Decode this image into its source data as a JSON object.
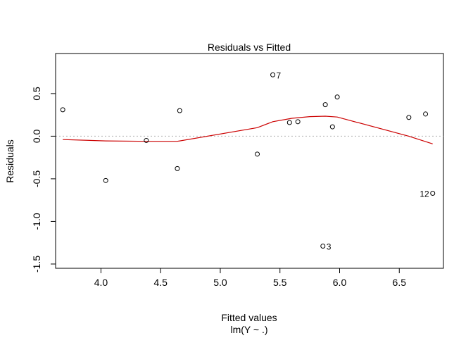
{
  "chart_data": {
    "type": "scatter",
    "title": "Residuals vs Fitted",
    "xlabel": "Fitted values",
    "xsublabel": "lm(Y ~ .)",
    "ylabel": "Residuals",
    "xlim": [
      3.62,
      6.87
    ],
    "ylim": [
      -1.55,
      0.97
    ],
    "x_ticks": [
      4.0,
      4.5,
      5.0,
      5.5,
      6.0,
      6.5
    ],
    "x_tick_labels": [
      "4.0",
      "4.5",
      "5.0",
      "5.5",
      "6.0",
      "6.5"
    ],
    "y_ticks": [
      -1.5,
      -1.0,
      -0.5,
      0.0,
      0.5
    ],
    "y_tick_labels": [
      "-1.5",
      "-1.0",
      "-0.5",
      "0.0",
      "0.5"
    ],
    "reference_line_y": 0,
    "points": [
      {
        "x": 3.68,
        "y": 0.31
      },
      {
        "x": 4.04,
        "y": -0.52
      },
      {
        "x": 4.38,
        "y": -0.05
      },
      {
        "x": 4.64,
        "y": -0.38
      },
      {
        "x": 4.66,
        "y": 0.3
      },
      {
        "x": 5.31,
        "y": -0.21
      },
      {
        "x": 5.44,
        "y": 0.72,
        "label": "7"
      },
      {
        "x": 5.58,
        "y": 0.16
      },
      {
        "x": 5.65,
        "y": 0.17
      },
      {
        "x": 5.86,
        "y": -1.29,
        "label": "3"
      },
      {
        "x": 5.88,
        "y": 0.37
      },
      {
        "x": 5.94,
        "y": 0.11
      },
      {
        "x": 5.98,
        "y": 0.46
      },
      {
        "x": 6.58,
        "y": 0.22
      },
      {
        "x": 6.72,
        "y": 0.26
      },
      {
        "x": 6.78,
        "y": -0.67,
        "label": "12"
      }
    ],
    "smoother": {
      "color": "#cc0000",
      "x": [
        3.68,
        4.04,
        4.38,
        4.64,
        5.31,
        5.44,
        5.6,
        5.75,
        5.88,
        5.98,
        6.58,
        6.78
      ],
      "y": [
        -0.04,
        -0.055,
        -0.06,
        -0.06,
        0.1,
        0.17,
        0.21,
        0.23,
        0.235,
        0.225,
        0.0,
        -0.09
      ]
    },
    "grid": false,
    "reference_line_color": "#b0b0b0",
    "point_color": "#000000"
  }
}
